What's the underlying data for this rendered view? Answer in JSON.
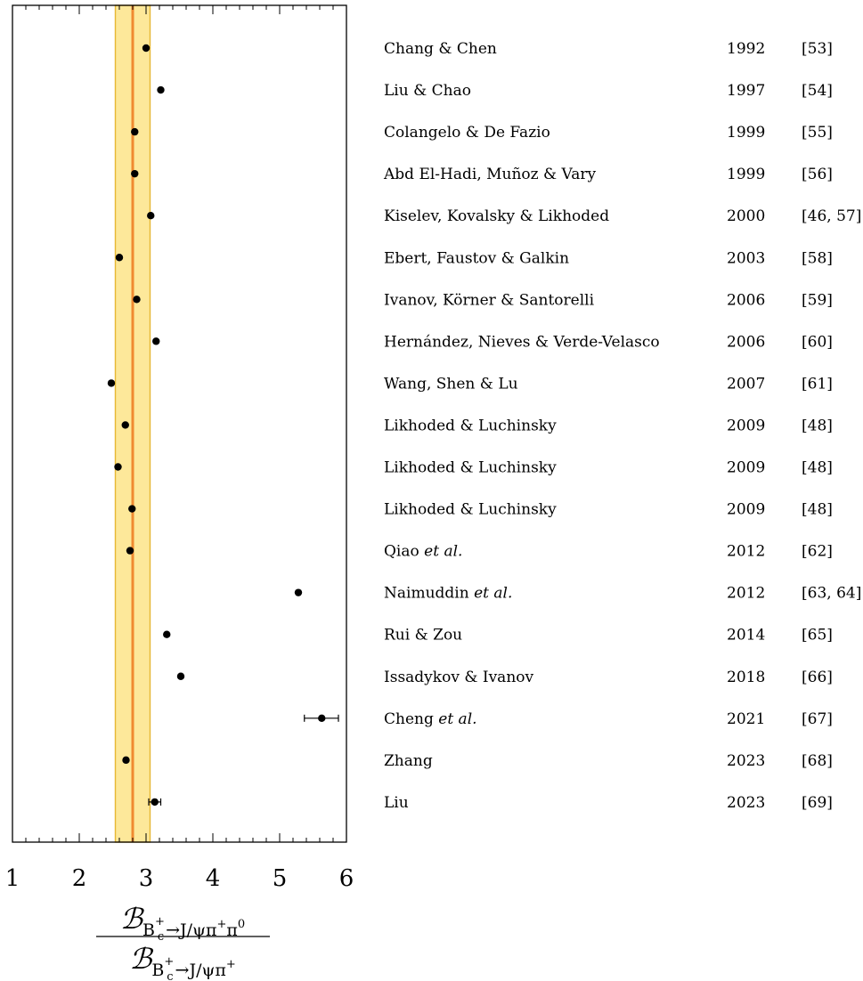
{
  "chart_data": {
    "type": "scatter",
    "xlim": [
      1,
      6
    ],
    "x_ticks": [
      1,
      2,
      3,
      4,
      5,
      6
    ],
    "grid": false,
    "band": {
      "low": 2.54,
      "high": 3.06,
      "central": 2.8
    },
    "xlabel": {
      "num_symbol": "ℬ",
      "num_sub_main": "B",
      "num_sub_c": "c",
      "num_sup_plus": "+",
      "num_sub_rest": "→J/ψπ",
      "num_sup_rest": "+",
      "num_sub_pi": "π",
      "num_sup_zero": "0",
      "den_symbol": "ℬ",
      "den_sub_main": "B",
      "den_sub_c": "c",
      "den_sup_plus": "+",
      "den_sub_rest": "→J/ψπ",
      "den_sup_rest": "+"
    },
    "points": [
      {
        "author": "Chang & Chen",
        "year": "1992",
        "ref": "[53]",
        "value": 3.0
      },
      {
        "author": "Liu & Chao",
        "year": "1997",
        "ref": "[54]",
        "value": 3.22
      },
      {
        "author": "Colangelo & De Fazio",
        "year": "1999",
        "ref": "[55]",
        "value": 2.83
      },
      {
        "author": "Abd El-Hadi, Muñoz & Vary",
        "year": "1999",
        "ref": "[56]",
        "value": 2.83
      },
      {
        "author": "Kiselev, Kovalsky & Likhoded",
        "year": "2000",
        "ref": "[46, 57]",
        "value": 3.07
      },
      {
        "author": "Ebert, Faustov & Galkin",
        "year": "2003",
        "ref": "[58]",
        "value": 2.6
      },
      {
        "author": "Ivanov, Körner & Santorelli",
        "year": "2006",
        "ref": "[59]",
        "value": 2.86
      },
      {
        "author": "Hernández, Nieves & Verde-Velasco",
        "year": "2006",
        "ref": "[60]",
        "value": 3.15
      },
      {
        "author": "Wang, Shen & Lu",
        "year": "2007",
        "ref": "[61]",
        "value": 2.48
      },
      {
        "author": "Likhoded & Luchinsky",
        "year": "2009",
        "ref": "[48]",
        "value": 2.69
      },
      {
        "author": "Likhoded & Luchinsky",
        "year": "2009",
        "ref": "[48]",
        "value": 2.58
      },
      {
        "author": "Likhoded & Luchinsky",
        "year": "2009",
        "ref": "[48]",
        "value": 2.79
      },
      {
        "author": "Qiao",
        "etal": "et al.",
        "year": "2012",
        "ref": "[62]",
        "value": 2.76
      },
      {
        "author": "Naimuddin",
        "etal": "et al.",
        "year": "2012",
        "ref": "[63, 64]",
        "value": 5.28
      },
      {
        "author": "Rui & Zou",
        "year": "2014",
        "ref": "[65]",
        "value": 3.31
      },
      {
        "author": "Issadykov & Ivanov",
        "year": "2018",
        "ref": "[66]",
        "value": 3.52
      },
      {
        "author": "Cheng",
        "etal": "et al.",
        "year": "2021",
        "ref": "[67]",
        "value": 5.63,
        "err_low": 5.37,
        "err_high": 5.88
      },
      {
        "author": "Zhang",
        "year": "2023",
        "ref": "[68]",
        "value": 2.7
      },
      {
        "author": "Liu",
        "year": "2023",
        "ref": "[69]",
        "value": 3.13,
        "err_low": 3.04,
        "err_high": 3.22
      }
    ]
  }
}
